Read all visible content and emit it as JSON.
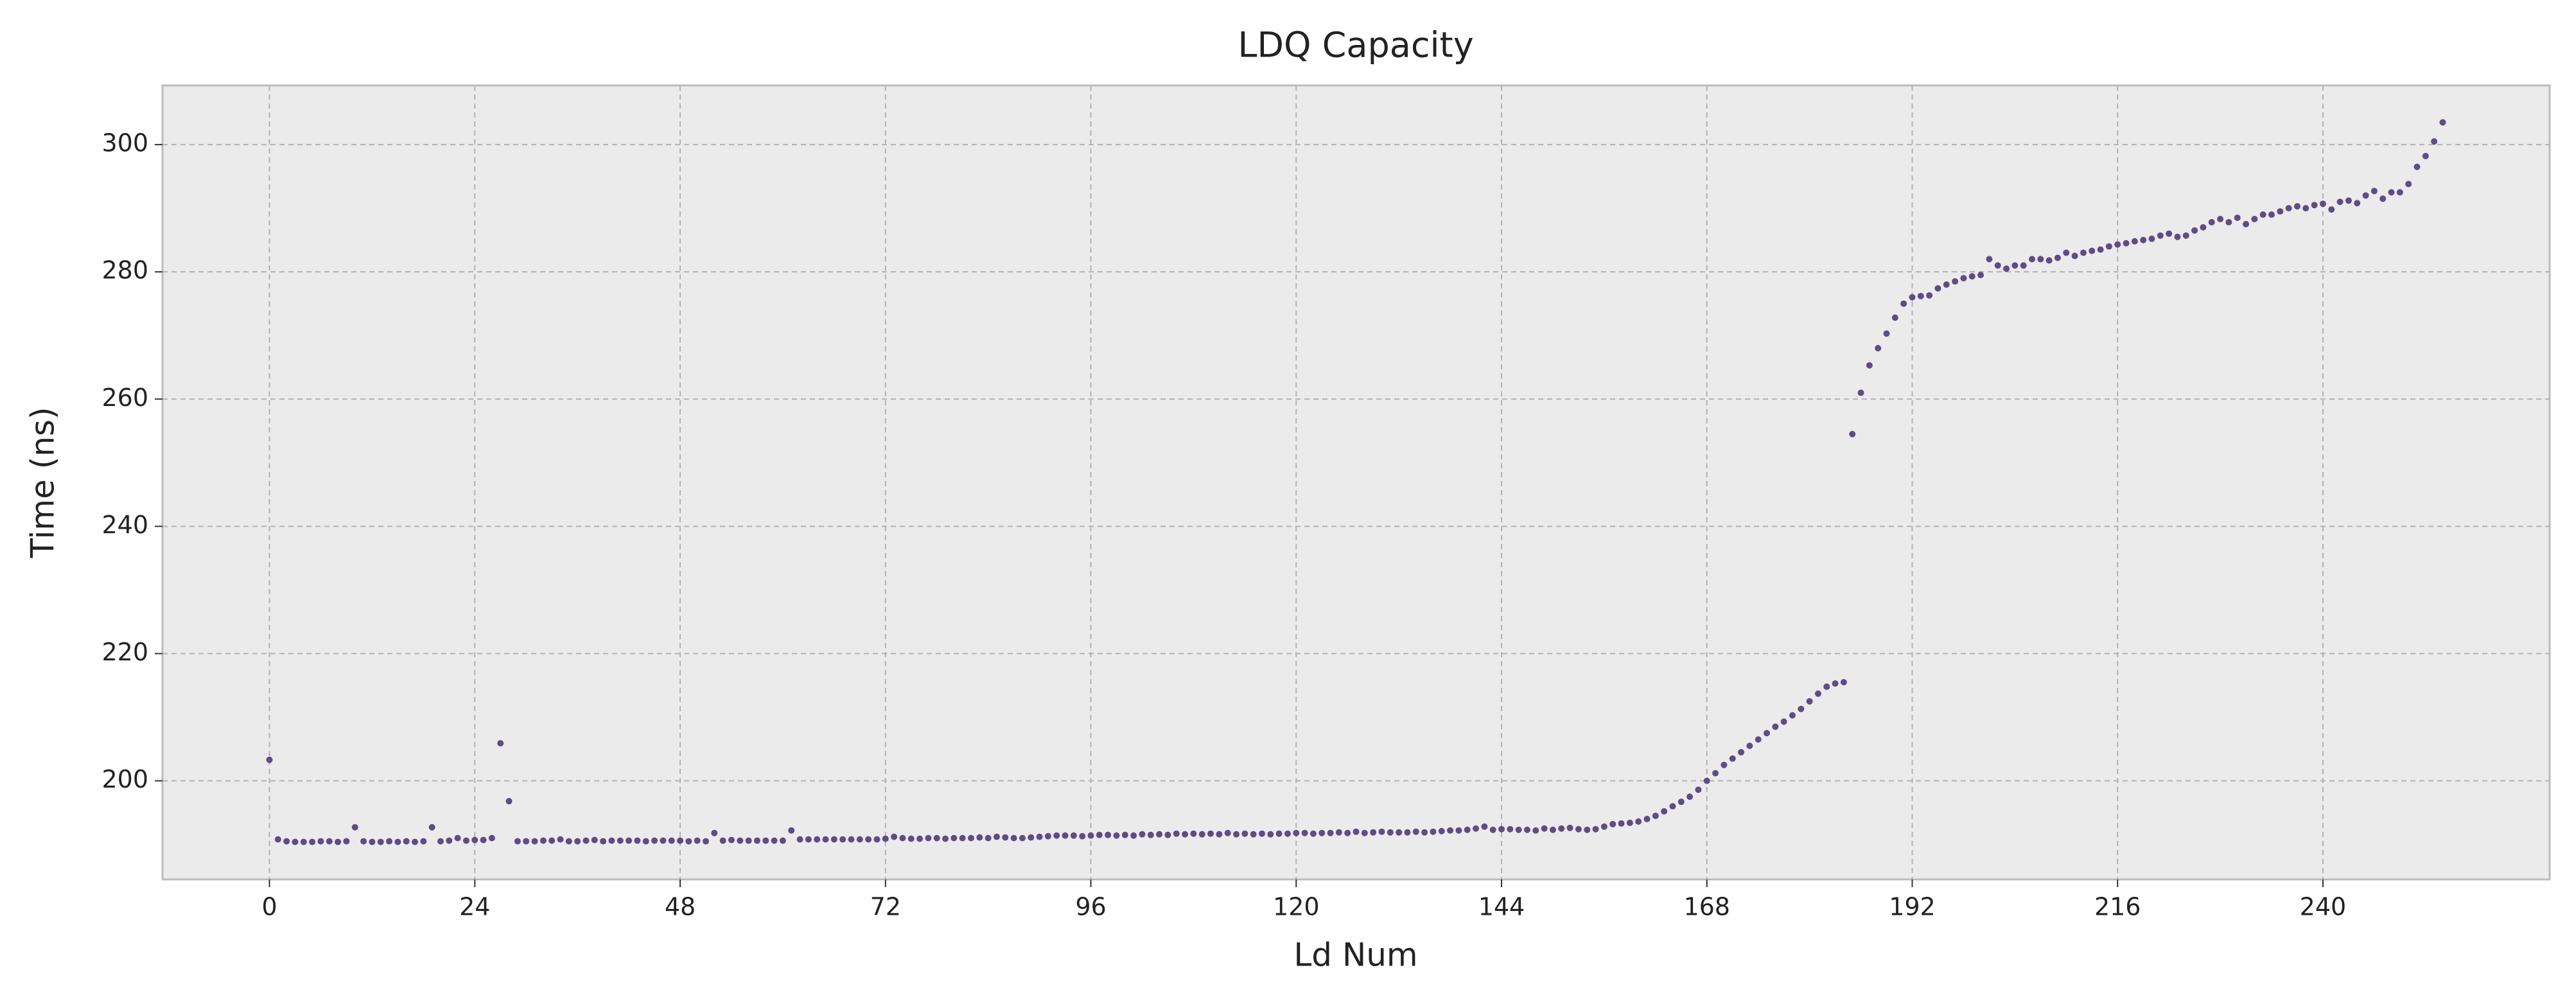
{
  "chart_data": {
    "type": "scatter",
    "title": "LDQ Capacity",
    "x_label": "Ld Num",
    "y_label": "Time (ns)",
    "color": "#5e4c86",
    "grid": true,
    "xlim": [
      -12.5,
      266.5
    ],
    "ylim": [
      184.5,
      309.3
    ],
    "xticks": [
      0,
      24,
      48,
      72,
      96,
      120,
      144,
      168,
      192,
      216,
      240
    ],
    "yticks": [
      200,
      220,
      240,
      260,
      280,
      300
    ],
    "x": [
      0,
      1,
      2,
      3,
      4,
      5,
      6,
      7,
      8,
      9,
      10,
      11,
      12,
      13,
      14,
      15,
      16,
      17,
      18,
      19,
      20,
      21,
      22,
      23,
      24,
      25,
      26,
      27,
      28,
      29,
      30,
      31,
      32,
      33,
      34,
      35,
      36,
      37,
      38,
      39,
      40,
      41,
      42,
      43,
      44,
      45,
      46,
      47,
      48,
      49,
      50,
      51,
      52,
      53,
      54,
      55,
      56,
      57,
      58,
      59,
      60,
      61,
      62,
      63,
      64,
      65,
      66,
      67,
      68,
      69,
      70,
      71,
      72,
      73,
      74,
      75,
      76,
      77,
      78,
      79,
      80,
      81,
      82,
      83,
      84,
      85,
      86,
      87,
      88,
      89,
      90,
      91,
      92,
      93,
      94,
      95,
      96,
      97,
      98,
      99,
      100,
      101,
      102,
      103,
      104,
      105,
      106,
      107,
      108,
      109,
      110,
      111,
      112,
      113,
      114,
      115,
      116,
      117,
      118,
      119,
      120,
      121,
      122,
      123,
      124,
      125,
      126,
      127,
      128,
      129,
      130,
      131,
      132,
      133,
      134,
      135,
      136,
      137,
      138,
      139,
      140,
      141,
      142,
      143,
      144,
      145,
      146,
      147,
      148,
      149,
      150,
      151,
      152,
      153,
      154,
      155,
      156,
      157,
      158,
      159,
      160,
      161,
      162,
      163,
      164,
      165,
      166,
      167,
      168,
      169,
      170,
      171,
      172,
      173,
      174,
      175,
      176,
      177,
      178,
      179,
      180,
      181,
      182,
      183,
      184,
      185,
      186,
      187,
      188,
      189,
      190,
      191,
      192,
      193,
      194,
      195,
      196,
      197,
      198,
      199,
      200,
      201,
      202,
      203,
      204,
      205,
      206,
      207,
      208,
      209,
      210,
      211,
      212,
      213,
      214,
      215,
      216,
      217,
      218,
      219,
      220,
      221,
      222,
      223,
      224,
      225,
      226,
      227,
      228,
      229,
      230,
      231,
      232,
      233,
      234,
      235,
      236,
      237,
      238,
      239,
      240,
      241,
      242,
      243,
      244,
      245,
      246,
      247,
      248,
      249,
      250,
      251,
      252,
      253,
      254
    ],
    "values": [
      203.3,
      190.8,
      190.5,
      190.4,
      190.4,
      190.4,
      190.5,
      190.5,
      190.4,
      190.5,
      192.7,
      190.5,
      190.4,
      190.4,
      190.5,
      190.4,
      190.5,
      190.4,
      190.5,
      192.7,
      190.5,
      190.6,
      191,
      190.6,
      190.7,
      190.7,
      191,
      205.9,
      196.8,
      190.5,
      190.5,
      190.5,
      190.6,
      190.6,
      190.8,
      190.5,
      190.5,
      190.6,
      190.7,
      190.5,
      190.6,
      190.6,
      190.6,
      190.6,
      190.5,
      190.6,
      190.6,
      190.6,
      190.6,
      190.5,
      190.6,
      190.5,
      191.8,
      190.6,
      190.7,
      190.6,
      190.6,
      190.6,
      190.6,
      190.6,
      190.6,
      192.2,
      190.8,
      190.8,
      190.8,
      190.8,
      190.8,
      190.8,
      190.8,
      190.8,
      190.8,
      190.8,
      190.9,
      191.2,
      191,
      190.9,
      190.9,
      191,
      191,
      190.9,
      191,
      191,
      191,
      191.1,
      191,
      191.2,
      191.1,
      191,
      191,
      191.1,
      191.2,
      191.3,
      191.4,
      191.4,
      191.4,
      191.3,
      191.4,
      191.5,
      191.5,
      191.4,
      191.5,
      191.4,
      191.6,
      191.5,
      191.6,
      191.5,
      191.7,
      191.6,
      191.7,
      191.6,
      191.7,
      191.6,
      191.8,
      191.6,
      191.7,
      191.6,
      191.7,
      191.6,
      191.7,
      191.7,
      191.8,
      191.8,
      191.7,
      191.8,
      191.8,
      191.9,
      191.8,
      192,
      191.8,
      191.9,
      192,
      191.9,
      191.9,
      191.9,
      192,
      191.9,
      192,
      192.1,
      192.2,
      192.2,
      192.3,
      192.5,
      192.8,
      192.3,
      192.4,
      192.4,
      192.3,
      192.3,
      192.2,
      192.5,
      192.3,
      192.5,
      192.6,
      192.4,
      192.3,
      192.4,
      192.8,
      193.2,
      193.3,
      193.4,
      193.6,
      194,
      194.5,
      195.2,
      196,
      196.7,
      197.5,
      198.6,
      200,
      201.2,
      202.5,
      203.5,
      204.5,
      205.5,
      206.5,
      207.5,
      208.5,
      209.3,
      210.3,
      211.3,
      212.5,
      213.7,
      214.8,
      215.3,
      215.5,
      254.5,
      261,
      265.3,
      268,
      270.3,
      272.8,
      275,
      276,
      276.2,
      276.3,
      277.4,
      278,
      278.5,
      279,
      279.3,
      279.5,
      282,
      281,
      280.5,
      281,
      281,
      282,
      282,
      281.8,
      282.2,
      283,
      282.5,
      283,
      283.3,
      283.5,
      284,
      284.3,
      284.5,
      284.8,
      285,
      285.2,
      285.7,
      286,
      285.5,
      285.7,
      286.5,
      287,
      287.8,
      288.3,
      287.8,
      288.5,
      287.5,
      288.3,
      289,
      289,
      289.5,
      290,
      290.3,
      290,
      290.5,
      290.7,
      289.8,
      291,
      291.2,
      290.8,
      292,
      292.7,
      291.5,
      292.5,
      292.5,
      293.8,
      296.5,
      298.2,
      300.5,
      303.5
    ]
  }
}
